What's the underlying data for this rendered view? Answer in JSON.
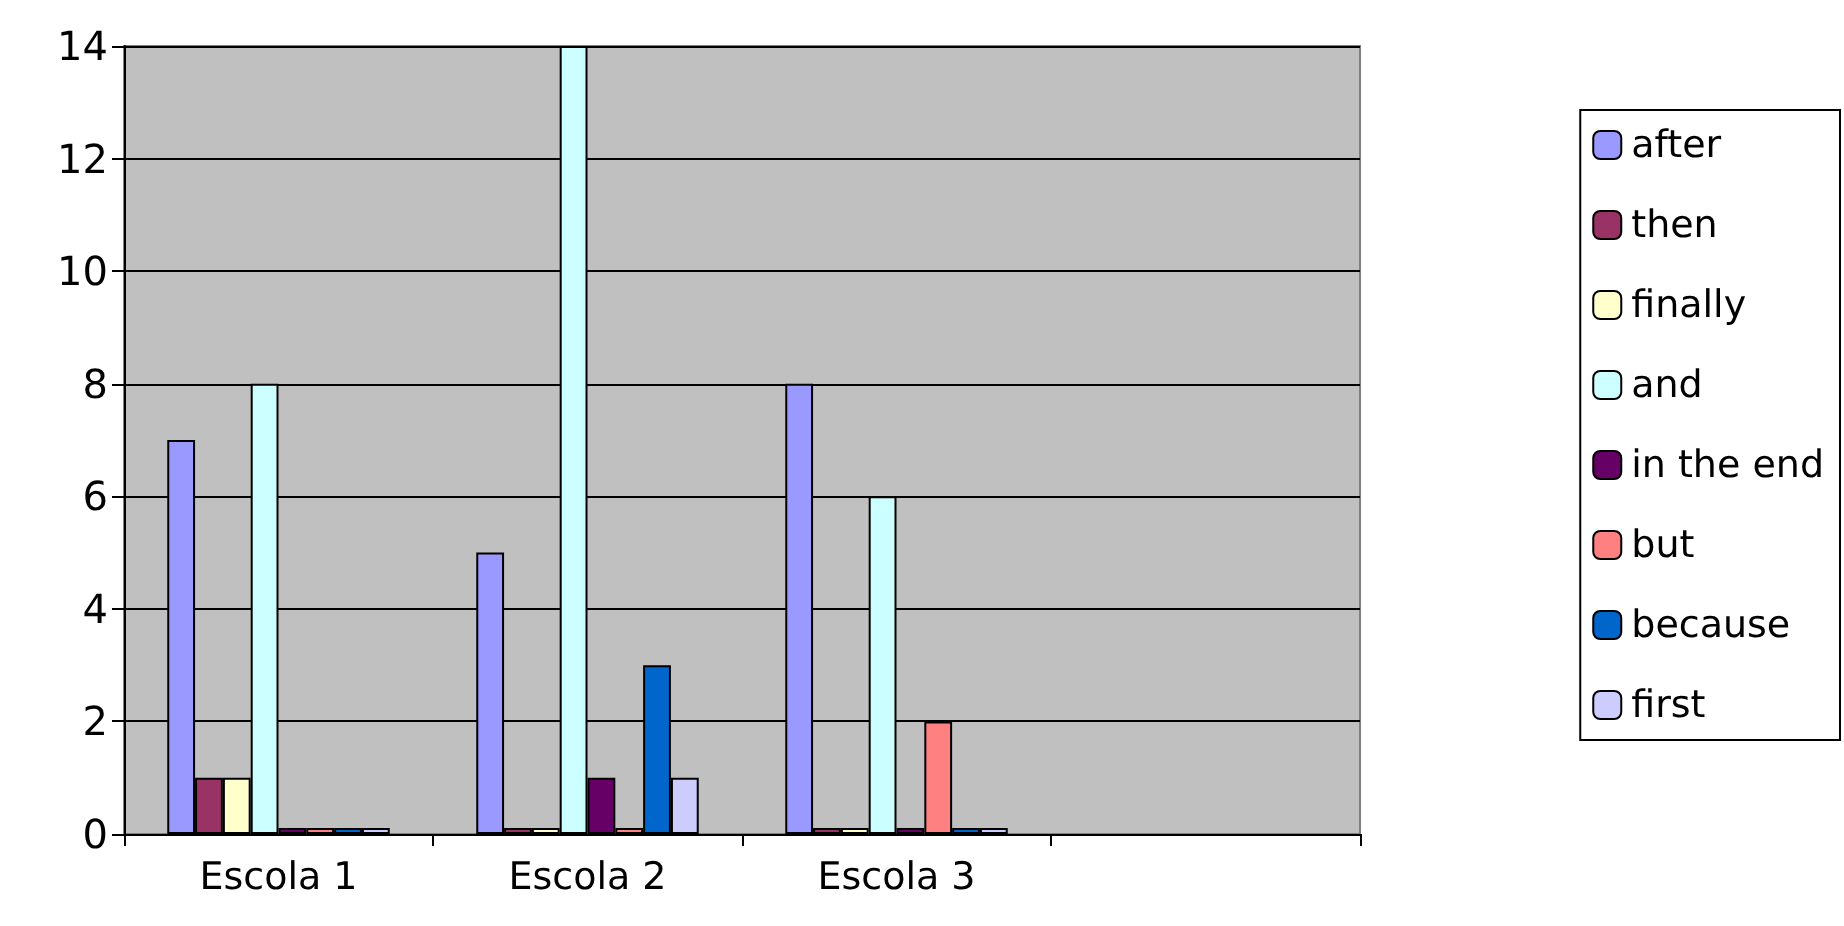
{
  "chart_data": {
    "type": "bar",
    "categories": [
      "Escola 1",
      "Escola 2",
      "Escola 3",
      null
    ],
    "series": [
      {
        "name": "after",
        "color": "#9999ff",
        "values": [
          7,
          5,
          8,
          null
        ]
      },
      {
        "name": "then",
        "color": "#993366",
        "values": [
          1,
          0,
          0,
          null
        ]
      },
      {
        "name": "finally",
        "color": "#ffffcc",
        "values": [
          1,
          0,
          0,
          null
        ]
      },
      {
        "name": "and",
        "color": "#ccffff",
        "values": [
          8,
          14,
          6,
          null
        ]
      },
      {
        "name": "in the end",
        "color": "#660066",
        "values": [
          0,
          1,
          0,
          null
        ]
      },
      {
        "name": "but",
        "color": "#ff8080",
        "values": [
          0,
          0,
          2,
          null
        ]
      },
      {
        "name": "because",
        "color": "#0066cc",
        "values": [
          0,
          3,
          0,
          null
        ]
      },
      {
        "name": "first",
        "color": "#ccccff",
        "values": [
          0,
          1,
          0,
          null
        ]
      }
    ],
    "ylim": [
      0,
      14
    ],
    "yticks": [
      0,
      2,
      4,
      6,
      8,
      10,
      12,
      14
    ],
    "grid": "y",
    "legend": "right"
  }
}
